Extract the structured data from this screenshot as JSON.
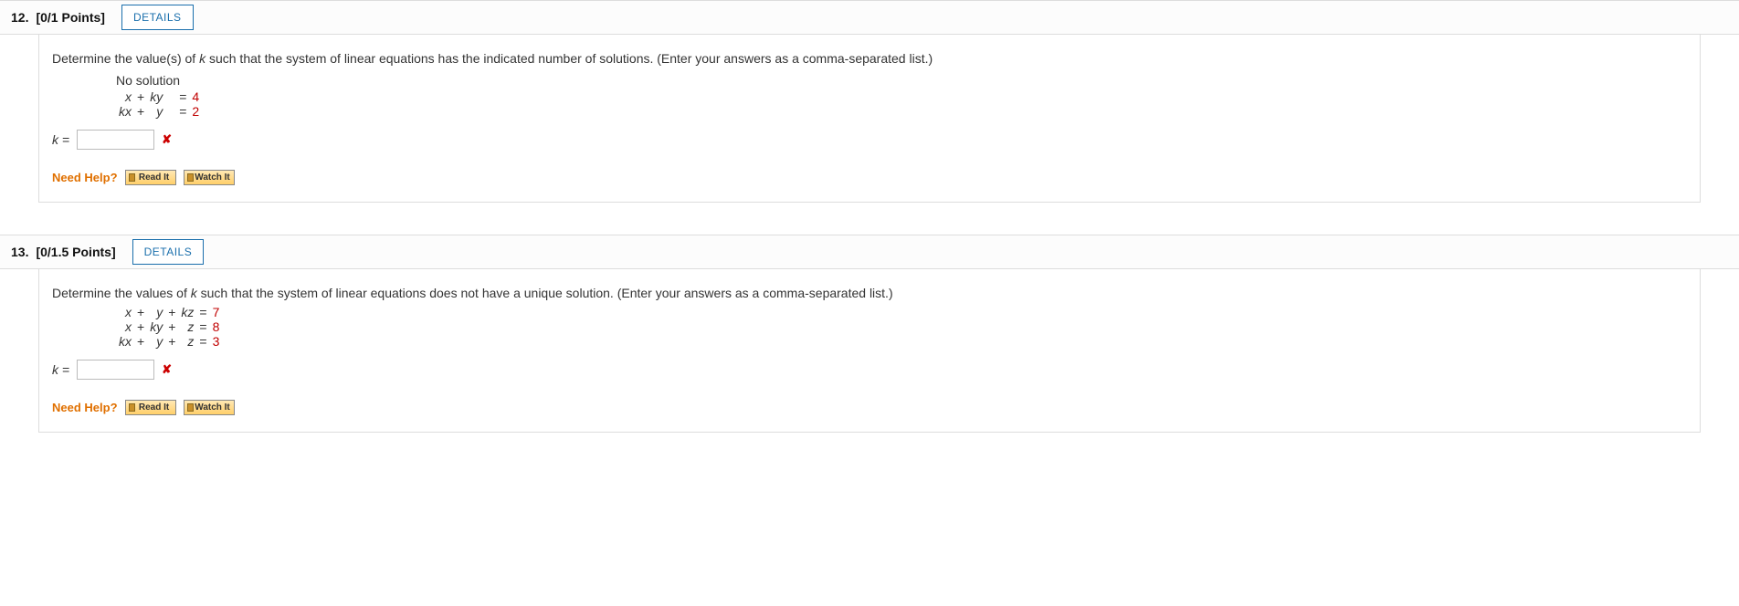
{
  "colors": {
    "border": "#dddddd",
    "accent": "#1a6fac",
    "numeric": "#c00000",
    "help_label": "#e07000",
    "error": "#cc0000",
    "help_btn_bg_top": "#ffe8b4",
    "help_btn_bg_bottom": "#ffcf6a"
  },
  "questions": [
    {
      "number": "12.",
      "points": "[0/1 Points]",
      "details_label": "DETAILS",
      "prompt_pre": "Determine the value(s) of ",
      "prompt_var": "k",
      "prompt_post": " such that the system of linear equations has the indicated number of solutions. (Enter your answers as a comma-separated list.)",
      "subheading": "No solution",
      "equations": [
        {
          "c1": "x",
          "op1": "+",
          "c2": "ky",
          "op2": "",
          "c3": "",
          "eq": "=",
          "rhs": "4"
        },
        {
          "c1": "kx",
          "op1": "+",
          "c2": "y",
          "op2": "",
          "c3": "",
          "eq": "=",
          "rhs": "2"
        }
      ],
      "answer_label": "k =",
      "answer_value": "",
      "wrong": true,
      "help_label": "Need Help?",
      "help_buttons": [
        "Read It",
        "Watch It"
      ]
    },
    {
      "number": "13.",
      "points": "[0/1.5 Points]",
      "details_label": "DETAILS",
      "prompt_pre": "Determine the values of ",
      "prompt_var": "k",
      "prompt_post": " such that the system of linear equations does not have a unique solution. (Enter your answers as a comma-separated list.)",
      "subheading": "",
      "equations": [
        {
          "c1": "x",
          "op1": "+",
          "c2": "y",
          "op2": "+",
          "c3": "kz",
          "eq": "=",
          "rhs": "7"
        },
        {
          "c1": "x",
          "op1": "+",
          "c2": "ky",
          "op2": "+",
          "c3": "z",
          "eq": "=",
          "rhs": "8"
        },
        {
          "c1": "kx",
          "op1": "+",
          "c2": "y",
          "op2": "+",
          "c3": "z",
          "eq": "=",
          "rhs": "3"
        }
      ],
      "answer_label": "k =",
      "answer_value": "",
      "wrong": true,
      "help_label": "Need Help?",
      "help_buttons": [
        "Read It",
        "Watch It"
      ]
    }
  ]
}
